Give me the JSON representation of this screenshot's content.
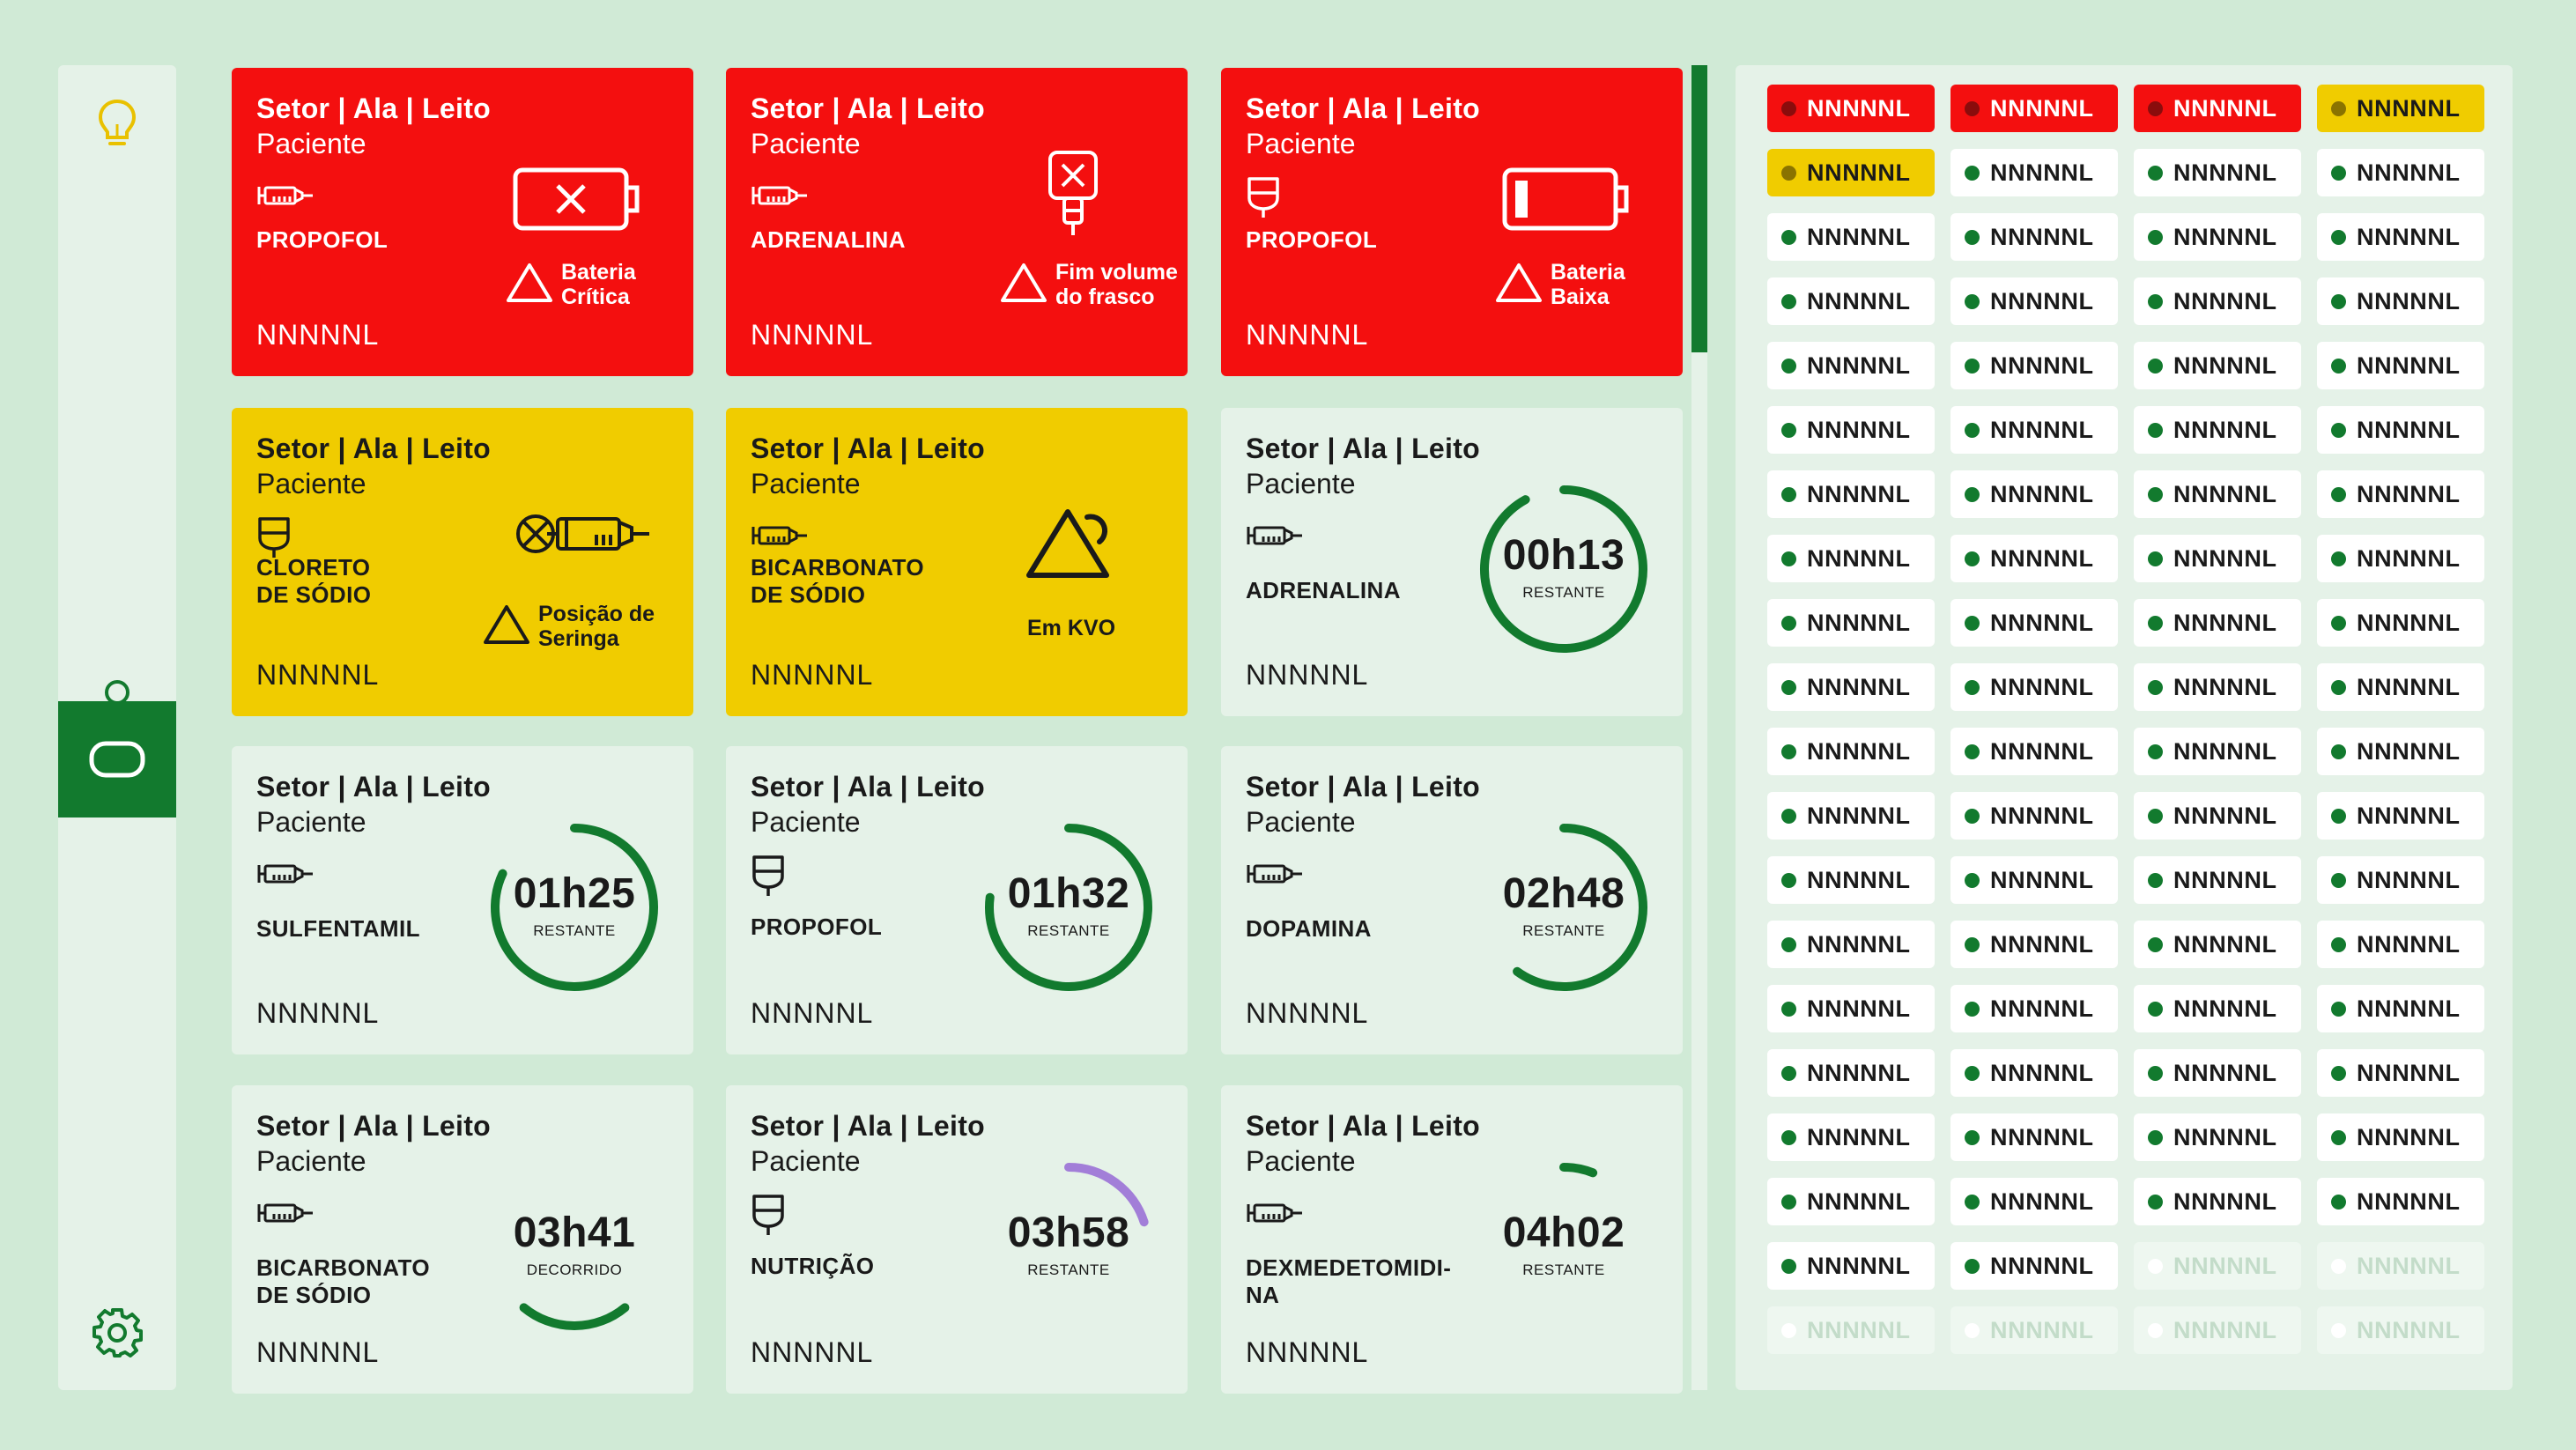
{
  "colors": {
    "red": "#f40f0f",
    "yellow": "#f0cc00",
    "green": "#127a2e",
    "purple": "#a27ed8",
    "light": "#e5f2e8",
    "bg": "#d0ead6"
  },
  "sidebar": [
    {
      "icon": "lightbulb-icon",
      "active": false
    },
    {
      "icon": "user-icon",
      "active": false
    },
    {
      "icon": "device-icon",
      "active": true
    },
    {
      "icon": "gear-icon",
      "active": false
    }
  ],
  "cards": [
    {
      "status": "red",
      "location": "Setor | Ala | Leito",
      "patient": "Paciente",
      "device": "syringe-icon",
      "drug": "PROPOFOL",
      "code": "NNNNNL",
      "alarm": "Bateria\nCrítica",
      "alarm_icon": "battery-critical-icon"
    },
    {
      "status": "red",
      "location": "Setor | Ala | Leito",
      "patient": "Paciente",
      "device": "syringe-icon",
      "drug": "ADRENALINA",
      "code": "NNNNNL",
      "alarm": "Fim volume\ndo frasco",
      "alarm_icon": "empty-bottle-icon"
    },
    {
      "status": "red",
      "location": "Setor | Ala | Leito",
      "patient": "Paciente",
      "device": "bag-icon",
      "drug": "PROPOFOL",
      "code": "NNNNNL",
      "alarm": "Bateria\nBaixa",
      "alarm_icon": "battery-low-icon"
    },
    {
      "status": "yellow",
      "location": "Setor | Ala | Leito",
      "patient": "Paciente",
      "device": "bag-icon",
      "drug": "CLORETO\nDE SÓDIO",
      "code": "NNNNNL",
      "alarm": "Posição de\nSeringa",
      "alarm_icon": "syringe-position-icon"
    },
    {
      "status": "yellow",
      "location": "Setor | Ala | Leito",
      "patient": "Paciente",
      "device": "syringe-icon",
      "drug": "BICARBONATO\nDE SÓDIO",
      "code": "NNNNNL",
      "alarm": "Em KVO",
      "alarm_icon": "warning-icon"
    },
    {
      "status": "green",
      "location": "Setor | Ala | Leito",
      "patient": "Paciente",
      "device": "syringe-icon",
      "drug": "ADRENALINA",
      "code": "NNNNNL",
      "time": "00h13",
      "time_label": "RESTANTE",
      "progress": 0.92,
      "ring_color": "green"
    },
    {
      "status": "green",
      "location": "Setor | Ala | Leito",
      "patient": "Paciente",
      "device": "syringe-icon",
      "drug": "SULFENTAMIL",
      "code": "NNNNNL",
      "time": "01h25",
      "time_label": "RESTANTE",
      "progress": 0.82,
      "ring_color": "green"
    },
    {
      "status": "green",
      "location": "Setor | Ala | Leito",
      "patient": "Paciente",
      "device": "bag-icon",
      "drug": "PROPOFOL",
      "code": "NNNNNL",
      "time": "01h32",
      "time_label": "RESTANTE",
      "progress": 0.77,
      "ring_color": "green"
    },
    {
      "status": "green",
      "location": "Setor | Ala | Leito",
      "patient": "Paciente",
      "device": "syringe-icon",
      "drug": "DOPAMINA",
      "code": "NNNNNL",
      "time": "02h48",
      "time_label": "RESTANTE",
      "progress": 0.6,
      "ring_color": "green"
    },
    {
      "status": "green",
      "location": "Setor | Ala | Leito",
      "patient": "Paciente",
      "device": "syringe-icon",
      "drug": "BICARBONATO\nDE SÓDIO",
      "code": "NNNNNL",
      "time": "03h41",
      "time_label": "DECORRIDO",
      "progress": 0.22,
      "ring_color": "green",
      "arc": "bottom"
    },
    {
      "status": "green",
      "location": "Setor | Ala | Leito",
      "patient": "Paciente",
      "device": "bag-icon",
      "drug": "NUTRIÇÃO",
      "code": "NNNNNL",
      "time": "03h58",
      "time_label": "RESTANTE",
      "progress": 0.2,
      "ring_color": "purple"
    },
    {
      "status": "green",
      "location": "Setor | Ala | Leito",
      "patient": "Paciente",
      "device": "syringe-icon",
      "drug": "DEXMEDETOMIDI-\nNA",
      "code": "NNNNNL",
      "time": "04h02",
      "time_label": "RESTANTE",
      "progress": 0.06,
      "ring_color": "green"
    }
  ],
  "chips": [
    {
      "label": "NNNNNL",
      "status": "red"
    },
    {
      "label": "NNNNNL",
      "status": "red"
    },
    {
      "label": "NNNNNL",
      "status": "red"
    },
    {
      "label": "NNNNNL",
      "status": "yellow"
    },
    {
      "label": "NNNNNL",
      "status": "yellow"
    },
    {
      "label": "NNNNNL",
      "status": "ok"
    },
    {
      "label": "NNNNNL",
      "status": "ok"
    },
    {
      "label": "NNNNNL",
      "status": "ok"
    },
    {
      "label": "NNNNNL",
      "status": "ok"
    },
    {
      "label": "NNNNNL",
      "status": "ok"
    },
    {
      "label": "NNNNNL",
      "status": "ok"
    },
    {
      "label": "NNNNNL",
      "status": "ok"
    },
    {
      "label": "NNNNNL",
      "status": "ok"
    },
    {
      "label": "NNNNNL",
      "status": "ok"
    },
    {
      "label": "NNNNNL",
      "status": "ok"
    },
    {
      "label": "NNNNNL",
      "status": "ok"
    },
    {
      "label": "NNNNNL",
      "status": "ok"
    },
    {
      "label": "NNNNNL",
      "status": "ok"
    },
    {
      "label": "NNNNNL",
      "status": "ok"
    },
    {
      "label": "NNNNNL",
      "status": "ok"
    },
    {
      "label": "NNNNNL",
      "status": "ok"
    },
    {
      "label": "NNNNNL",
      "status": "ok"
    },
    {
      "label": "NNNNNL",
      "status": "ok"
    },
    {
      "label": "NNNNNL",
      "status": "ok"
    },
    {
      "label": "NNNNNL",
      "status": "ok"
    },
    {
      "label": "NNNNNL",
      "status": "ok"
    },
    {
      "label": "NNNNNL",
      "status": "ok"
    },
    {
      "label": "NNNNNL",
      "status": "ok"
    },
    {
      "label": "NNNNNL",
      "status": "ok"
    },
    {
      "label": "NNNNNL",
      "status": "ok"
    },
    {
      "label": "NNNNNL",
      "status": "ok"
    },
    {
      "label": "NNNNNL",
      "status": "ok"
    },
    {
      "label": "NNNNNL",
      "status": "ok"
    },
    {
      "label": "NNNNNL",
      "status": "ok"
    },
    {
      "label": "NNNNNL",
      "status": "ok"
    },
    {
      "label": "NNNNNL",
      "status": "ok"
    },
    {
      "label": "NNNNNL",
      "status": "ok"
    },
    {
      "label": "NNNNNL",
      "status": "ok"
    },
    {
      "label": "NNNNNL",
      "status": "ok"
    },
    {
      "label": "NNNNNL",
      "status": "ok"
    },
    {
      "label": "NNNNNL",
      "status": "ok"
    },
    {
      "label": "NNNNNL",
      "status": "ok"
    },
    {
      "label": "NNNNNL",
      "status": "ok"
    },
    {
      "label": "NNNNNL",
      "status": "ok"
    },
    {
      "label": "NNNNNL",
      "status": "ok"
    },
    {
      "label": "NNNNNL",
      "status": "ok"
    },
    {
      "label": "NNNNNL",
      "status": "ok"
    },
    {
      "label": "NNNNNL",
      "status": "ok"
    },
    {
      "label": "NNNNNL",
      "status": "ok"
    },
    {
      "label": "NNNNNL",
      "status": "ok"
    },
    {
      "label": "NNNNNL",
      "status": "ok"
    },
    {
      "label": "NNNNNL",
      "status": "ok"
    },
    {
      "label": "NNNNNL",
      "status": "ok"
    },
    {
      "label": "NNNNNL",
      "status": "ok"
    },
    {
      "label": "NNNNNL",
      "status": "ok"
    },
    {
      "label": "NNNNNL",
      "status": "ok"
    },
    {
      "label": "NNNNNL",
      "status": "ok"
    },
    {
      "label": "NNNNNL",
      "status": "ok"
    },
    {
      "label": "NNNNNL",
      "status": "ok"
    },
    {
      "label": "NNNNNL",
      "status": "ok"
    },
    {
      "label": "NNNNNL",
      "status": "ok"
    },
    {
      "label": "NNNNNL",
      "status": "ok"
    },
    {
      "label": "NNNNNL",
      "status": "ok"
    },
    {
      "label": "NNNNNL",
      "status": "ok"
    },
    {
      "label": "NNNNNL",
      "status": "ok"
    },
    {
      "label": "NNNNNL",
      "status": "ok"
    },
    {
      "label": "NNNNNL",
      "status": "ok"
    },
    {
      "label": "NNNNNL",
      "status": "ok"
    },
    {
      "label": "NNNNNL",
      "status": "ok"
    },
    {
      "label": "NNNNNL",
      "status": "ok"
    },
    {
      "label": "NNNNNL",
      "status": "ok"
    },
    {
      "label": "NNNNNL",
      "status": "ok"
    },
    {
      "label": "NNNNNL",
      "status": "ok"
    },
    {
      "label": "NNNNNL",
      "status": "ok"
    },
    {
      "label": "NNNNNL",
      "status": "empty"
    },
    {
      "label": "NNNNNL",
      "status": "empty"
    },
    {
      "label": "NNNNNL",
      "status": "empty"
    },
    {
      "label": "NNNNNL",
      "status": "empty"
    },
    {
      "label": "NNNNNL",
      "status": "empty"
    },
    {
      "label": "NNNNNL",
      "status": "empty"
    }
  ]
}
